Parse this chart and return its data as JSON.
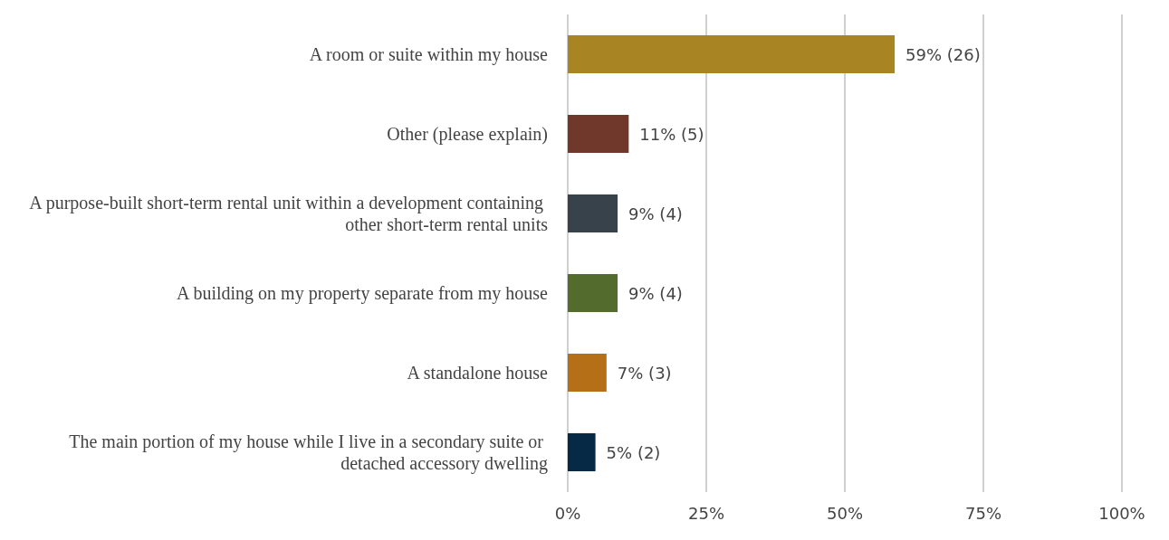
{
  "chart_data": {
    "type": "bar",
    "orientation": "horizontal",
    "categories": [
      "A room or suite within my house",
      "Other (please explain)",
      "A purpose-built short-term rental unit within a development containing other short-term rental units",
      "A building on my property separate from my house",
      "A standalone house",
      "The main portion of my house while I live in a secondary suite or detached accessory dwelling"
    ],
    "values": [
      59,
      11,
      9,
      9,
      7,
      5
    ],
    "colors": [
      "#a88423",
      "#70372b",
      "#37424a",
      "#536b2d",
      "#b56f16",
      "#062a45"
    ],
    "value_labels": [
      "59% (26)",
      "11% (5)",
      "9% (4)",
      "9% (4)",
      "7% (3)",
      "5% (2)"
    ],
    "xlim": [
      0,
      100
    ],
    "xticks": [
      {
        "value": 0,
        "label": "0%"
      },
      {
        "value": 25,
        "label": "25%"
      },
      {
        "value": 50,
        "label": "50%"
      },
      {
        "value": 75,
        "label": "75%"
      },
      {
        "value": 100,
        "label": "100%"
      }
    ],
    "grid": "x"
  }
}
